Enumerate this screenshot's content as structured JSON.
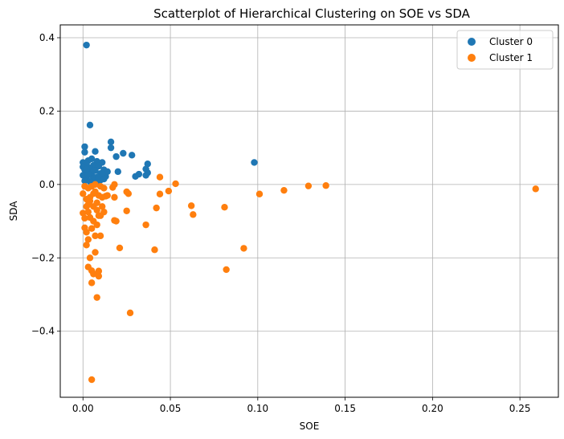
{
  "chart_data": {
    "type": "scatter",
    "title": "Scatterplot of Hierarchical Clustering on SOE vs SDA",
    "xlabel": "SOE",
    "ylabel": "SDA",
    "xlim": [
      -0.013,
      0.272
    ],
    "ylim": [
      -0.58,
      0.435
    ],
    "xticks": [
      0.0,
      0.05,
      0.1,
      0.15,
      0.2,
      0.25
    ],
    "xtick_labels": [
      "0.00",
      "0.05",
      "0.10",
      "0.15",
      "0.20",
      "0.25"
    ],
    "yticks": [
      0.4,
      0.2,
      0.0,
      -0.2,
      -0.4
    ],
    "ytick_labels": [
      "0.4",
      "0.2",
      "0.0",
      "−0.2",
      "−0.4"
    ],
    "grid": true,
    "legend_position": "top-right",
    "series": [
      {
        "name": "Cluster 0",
        "color": "#1f77b4",
        "points": [
          [
            0.002,
            0.38
          ],
          [
            0.004,
            0.162
          ],
          [
            0.016,
            0.116
          ],
          [
            0.016,
            0.1
          ],
          [
            0.001,
            0.103
          ],
          [
            0.001,
            0.088
          ],
          [
            0.007,
            0.09
          ],
          [
            0.023,
            0.085
          ],
          [
            0.028,
            0.08
          ],
          [
            0.019,
            0.076
          ],
          [
            0.005,
            0.07
          ],
          [
            0.003,
            0.065
          ],
          [
            0.0,
            0.06
          ],
          [
            0.008,
            0.063
          ],
          [
            0.011,
            0.06
          ],
          [
            0.098,
            0.06
          ],
          [
            0.037,
            0.056
          ],
          [
            0.002,
            0.055
          ],
          [
            0.006,
            0.052
          ],
          [
            0.009,
            0.05
          ],
          [
            0.0,
            0.048
          ],
          [
            0.004,
            0.045
          ],
          [
            0.012,
            0.04
          ],
          [
            0.036,
            0.042
          ],
          [
            0.001,
            0.04
          ],
          [
            0.007,
            0.038
          ],
          [
            0.014,
            0.035
          ],
          [
            0.02,
            0.035
          ],
          [
            0.037,
            0.032
          ],
          [
            0.003,
            0.032
          ],
          [
            0.01,
            0.03
          ],
          [
            0.032,
            0.028
          ],
          [
            0.0,
            0.025
          ],
          [
            0.005,
            0.025
          ],
          [
            0.03,
            0.022
          ],
          [
            0.013,
            0.022
          ],
          [
            0.008,
            0.02
          ],
          [
            0.002,
            0.018
          ],
          [
            0.036,
            0.025
          ],
          [
            0.006,
            0.015
          ],
          [
            0.01,
            0.012
          ],
          [
            0.001,
            0.01
          ],
          [
            0.004,
            0.008
          ],
          [
            0.008,
            0.005
          ],
          [
            0.011,
            0.03
          ],
          [
            0.006,
            0.038
          ],
          [
            0.003,
            0.028
          ],
          [
            0.009,
            0.018
          ],
          [
            0.002,
            0.042
          ],
          [
            0.012,
            0.015
          ]
        ]
      },
      {
        "name": "Cluster 1",
        "color": "#ff7f0e",
        "points": [
          [
            0.259,
            -0.012
          ],
          [
            0.139,
            -0.003
          ],
          [
            0.129,
            -0.004
          ],
          [
            0.115,
            -0.016
          ],
          [
            0.101,
            -0.026
          ],
          [
            0.081,
            -0.062
          ],
          [
            0.082,
            -0.232
          ],
          [
            0.092,
            -0.174
          ],
          [
            0.063,
            -0.082
          ],
          [
            0.062,
            -0.058
          ],
          [
            0.053,
            0.002
          ],
          [
            0.049,
            -0.018
          ],
          [
            0.044,
            0.02
          ],
          [
            0.044,
            -0.026
          ],
          [
            0.042,
            -0.064
          ],
          [
            0.041,
            -0.178
          ],
          [
            0.036,
            -0.11
          ],
          [
            0.026,
            -0.025
          ],
          [
            0.025,
            -0.02
          ],
          [
            0.025,
            -0.072
          ],
          [
            0.021,
            -0.173
          ],
          [
            0.027,
            -0.35
          ],
          [
            0.018,
            0.0
          ],
          [
            0.017,
            -0.008
          ],
          [
            0.018,
            -0.035
          ],
          [
            0.018,
            -0.098
          ],
          [
            0.019,
            -0.1
          ],
          [
            0.013,
            -0.032
          ],
          [
            0.012,
            -0.075
          ],
          [
            0.01,
            -0.085
          ],
          [
            0.01,
            -0.14
          ],
          [
            0.009,
            -0.236
          ],
          [
            0.009,
            -0.25
          ],
          [
            0.007,
            -0.185
          ],
          [
            0.008,
            -0.308
          ],
          [
            0.005,
            -0.235
          ],
          [
            0.006,
            -0.244
          ],
          [
            0.005,
            -0.268
          ],
          [
            0.005,
            -0.532
          ],
          [
            0.004,
            -0.2
          ],
          [
            0.003,
            -0.225
          ],
          [
            0.002,
            -0.165
          ],
          [
            0.003,
            -0.15
          ],
          [
            0.002,
            -0.13
          ],
          [
            0.001,
            -0.118
          ],
          [
            0.0,
            -0.078
          ],
          [
            0.001,
            -0.092
          ],
          [
            0.002,
            -0.06
          ],
          [
            0.004,
            -0.045
          ],
          [
            0.0,
            -0.025
          ],
          [
            0.003,
            -0.01
          ],
          [
            0.005,
            -0.005
          ],
          [
            0.007,
            -0.02
          ],
          [
            0.009,
            -0.03
          ],
          [
            0.011,
            -0.035
          ],
          [
            0.014,
            -0.03
          ],
          [
            0.006,
            -0.06
          ],
          [
            0.008,
            -0.07
          ],
          [
            0.009,
            -0.085
          ],
          [
            0.006,
            -0.1
          ],
          [
            0.007,
            -0.14
          ],
          [
            0.008,
            -0.11
          ],
          [
            0.004,
            -0.09
          ],
          [
            0.003,
            -0.075
          ],
          [
            0.01,
            -0.005
          ],
          [
            0.012,
            -0.01
          ],
          [
            0.002,
            -0.04
          ],
          [
            0.005,
            -0.12
          ],
          [
            0.004,
            -0.035
          ],
          [
            0.008,
            -0.05
          ],
          [
            0.011,
            -0.06
          ],
          [
            0.003,
            -0.055
          ],
          [
            0.006,
            -0.025
          ],
          [
            0.001,
            -0.005
          ],
          [
            0.007,
            0.0
          ]
        ]
      }
    ]
  }
}
